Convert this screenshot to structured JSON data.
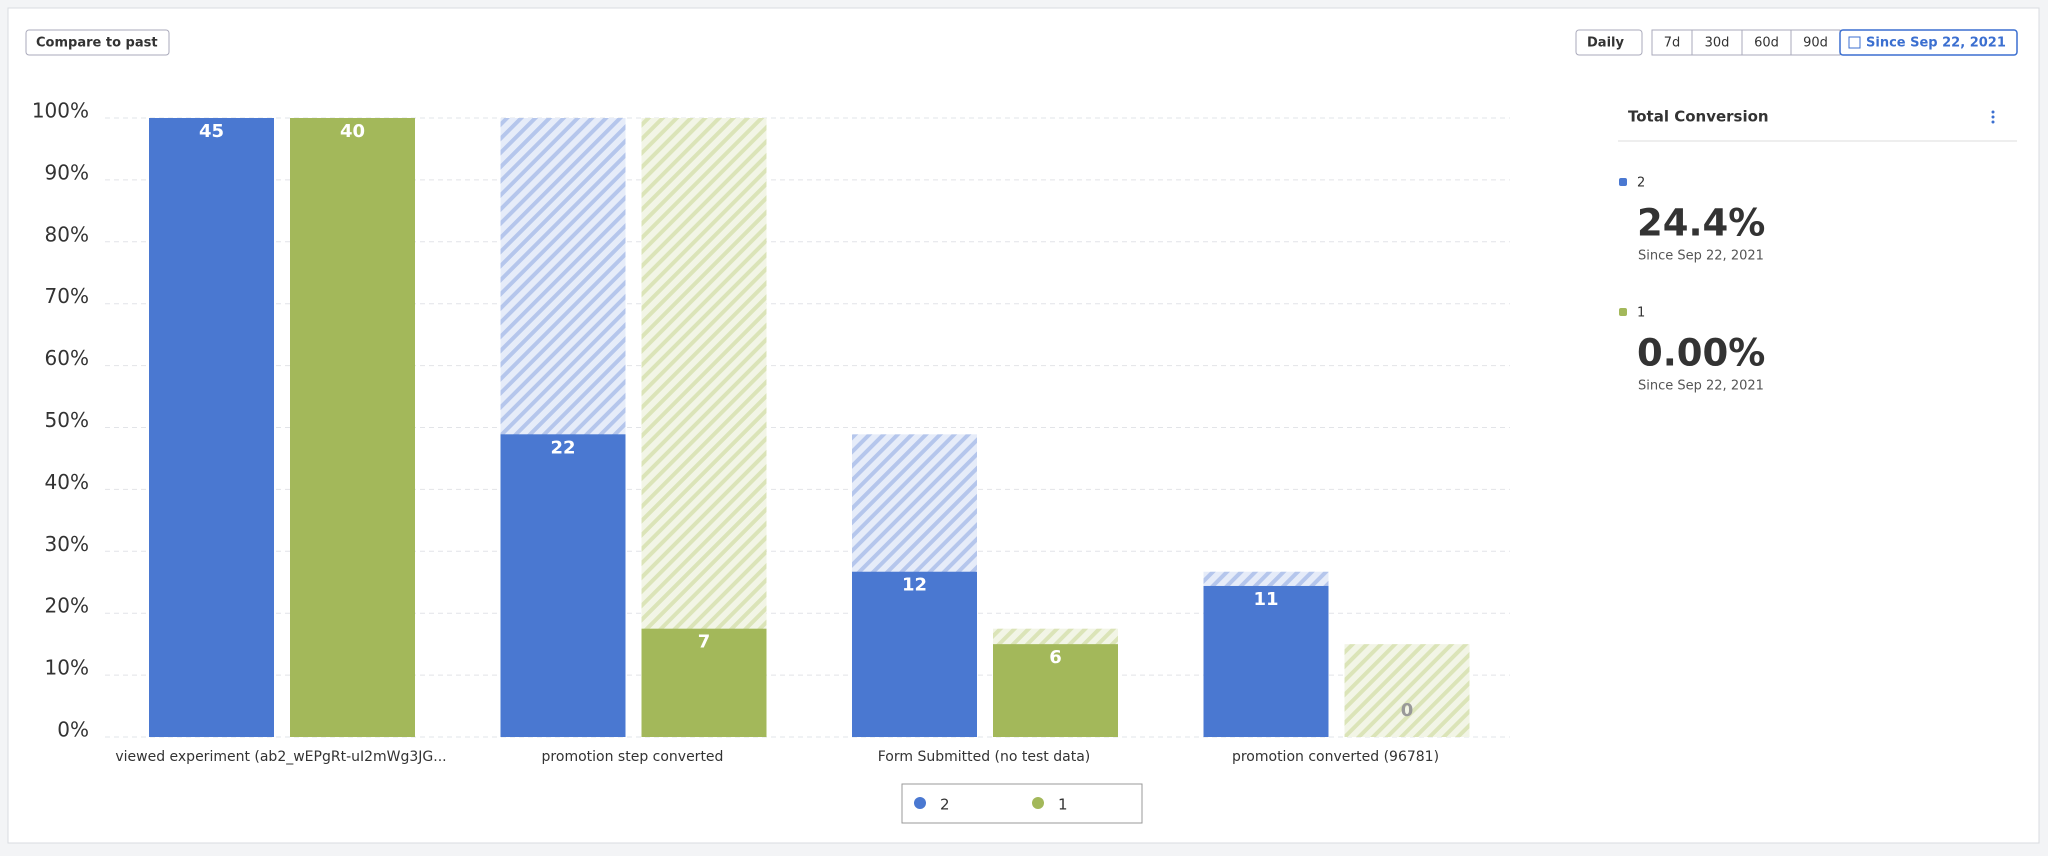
{
  "controls": {
    "compare": "Compare to past",
    "interval": "Daily",
    "ranges": [
      "7d",
      "30d",
      "60d",
      "90d"
    ],
    "since": "Since Sep 22, 2021"
  },
  "chart_data": {
    "type": "funnel",
    "categories": [
      "viewed experiment (ab2_wEPgRt-uI2mWg3JG...",
      "promotion step converted",
      "Form Submitted (no test data)",
      "promotion converted (96781)"
    ],
    "series": [
      {
        "name": "2",
        "color": "#4a78d1",
        "hatch": "#c3d1f0",
        "values": [
          100,
          48.9,
          26.7,
          24.4
        ],
        "counts": [
          45,
          22,
          12,
          11
        ]
      },
      {
        "name": "1",
        "color": "#a3b85a",
        "hatch": "#e1e9c4",
        "values": [
          100,
          17.5,
          15,
          0
        ],
        "counts": [
          40,
          7,
          6,
          0
        ]
      }
    ],
    "ylim": [
      0,
      100
    ],
    "yticks": [
      {
        "value": 0,
        "label": "0%"
      },
      {
        "value": 10,
        "label": "10%"
      },
      {
        "value": 20,
        "label": "20%"
      },
      {
        "value": 30,
        "label": "30%"
      },
      {
        "value": 40,
        "label": "40%"
      },
      {
        "value": 50,
        "label": "50%"
      },
      {
        "value": 60,
        "label": "60%"
      },
      {
        "value": 70,
        "label": "70%"
      },
      {
        "value": 80,
        "label": "80%"
      },
      {
        "value": 90,
        "label": "90%"
      },
      {
        "value": 100,
        "label": "100%"
      }
    ],
    "grid": true
  },
  "summary": {
    "title": "Total Conversion",
    "items": [
      {
        "name": "2",
        "color": "#4a78d1",
        "value": "24.4%",
        "note": "Since Sep 22, 2021"
      },
      {
        "name": "1",
        "color": "#a3b85a",
        "value": "0.00%",
        "note": "Since Sep 22, 2021"
      }
    ]
  }
}
